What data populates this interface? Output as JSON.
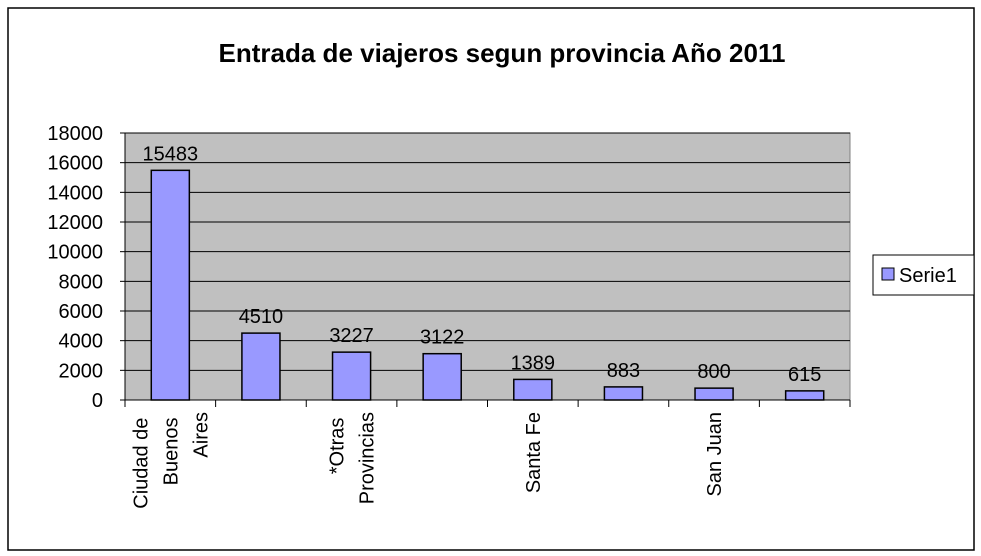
{
  "chart_data": {
    "type": "bar",
    "title": "Entrada de viajeros segun provincia Año 2011",
    "categories": [
      "Ciudad de Buenos Aires",
      null,
      "*Otras Provincias",
      null,
      "Santa Fe",
      null,
      "San Juan",
      null
    ],
    "series": [
      {
        "name": "Serie1",
        "color": "#9999ff",
        "values": [
          15483,
          4510,
          3227,
          3122,
          1389,
          883,
          800,
          615
        ]
      }
    ],
    "ylim": [
      0,
      18000
    ],
    "yticks": [
      0,
      2000,
      4000,
      6000,
      8000,
      10000,
      12000,
      14000,
      16000,
      18000
    ],
    "grid": true,
    "legend": "right"
  }
}
